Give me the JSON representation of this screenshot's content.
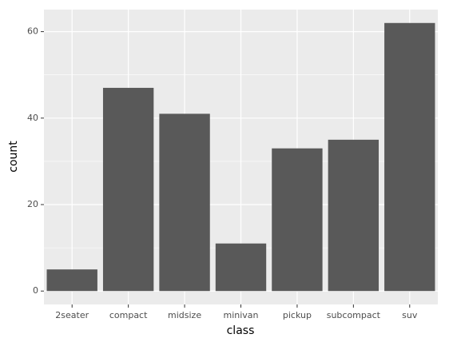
{
  "chart_data": {
    "type": "bar",
    "x_label": "class",
    "y_label": "count",
    "categories": [
      "2seater",
      "compact",
      "midsize",
      "minivan",
      "pickup",
      "subcompact",
      "suv"
    ],
    "values": [
      5,
      47,
      41,
      11,
      33,
      35,
      62
    ],
    "color": "#595959",
    "ylim": [
      -3.1,
      65.1
    ],
    "yticks": [
      0,
      20,
      40,
      60
    ],
    "grid": true
  }
}
